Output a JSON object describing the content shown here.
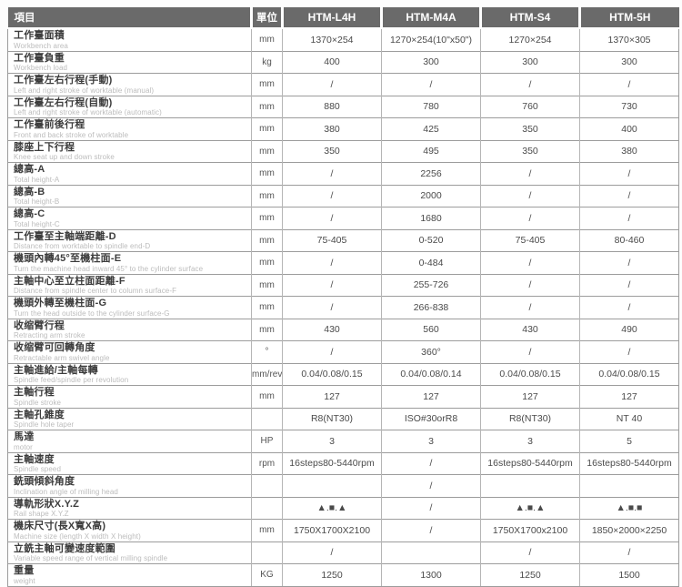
{
  "table": {
    "item_label": "項目",
    "unit_label": "單位",
    "models": [
      "HTM-L4H",
      "HTM-M4A",
      "HTM-S4",
      "HTM-5H"
    ],
    "rows": [
      {
        "zh": "工作臺面積",
        "en": "Workbench area",
        "unit": "mm",
        "values": [
          "1370×254",
          "1270×254(10\"x50\")",
          "1270×254",
          "1370×305"
        ]
      },
      {
        "zh": "工作臺負重",
        "en": "Workbench load",
        "unit": "kg",
        "values": [
          "400",
          "300",
          "300",
          "300"
        ]
      },
      {
        "zh": "工作臺左右行程(手動)",
        "en": "Left and right stroke of worktable (manual)",
        "unit": "mm",
        "values": [
          "/",
          "/",
          "/",
          "/"
        ]
      },
      {
        "zh": "工作臺左右行程(自動)",
        "en": "Left and right stroke of worktable (automatic)",
        "unit": "mm",
        "values": [
          "880",
          "780",
          "760",
          "730"
        ]
      },
      {
        "zh": "工作臺前後行程",
        "en": "Front and back stroke of worktable",
        "unit": "mm",
        "values": [
          "380",
          "425",
          "350",
          "400"
        ]
      },
      {
        "zh": "膝座上下行程",
        "en": "Knee seat up and down stroke",
        "unit": "mm",
        "values": [
          "350",
          "495",
          "350",
          "380"
        ]
      },
      {
        "zh": "總高-A",
        "en": "Total height-A",
        "unit": "mm",
        "values": [
          "/",
          "2256",
          "/",
          "/"
        ]
      },
      {
        "zh": "總高-B",
        "en": "Total height-B",
        "unit": "mm",
        "values": [
          "/",
          "2000",
          "/",
          "/"
        ]
      },
      {
        "zh": "總高-C",
        "en": "Total height-C",
        "unit": "mm",
        "values": [
          "/",
          "1680",
          "/",
          "/"
        ]
      },
      {
        "zh": "工作臺至主軸端距離-D",
        "en": "Distance from worktable to spindle end-D",
        "unit": "mm",
        "values": [
          "75-405",
          "0-520",
          "75-405",
          "80-460"
        ]
      },
      {
        "zh": "機頭內轉45°至機柱面-E",
        "en": "Turn the machine head inward 45° to the cylinder surface",
        "unit": "mm",
        "values": [
          "/",
          "0-484",
          "/",
          "/"
        ]
      },
      {
        "zh": "主軸中心至立柱面距離-F",
        "en": "Distance from spindle center to column surface-F",
        "unit": "mm",
        "values": [
          "/",
          "255-726",
          "/",
          "/"
        ]
      },
      {
        "zh": "機頭外轉至機柱面-G",
        "en": "Turn the head outside to the cylinder surface-G",
        "unit": "mm",
        "values": [
          "/",
          "266-838",
          "/",
          "/"
        ]
      },
      {
        "zh": "收缩臂行程",
        "en": "Retracting arm stroke",
        "unit": "mm",
        "values": [
          "430",
          "560",
          "430",
          "490"
        ]
      },
      {
        "zh": "收缩臂可回轉角度",
        "en": "Retractable arm swivel angle",
        "unit": "°",
        "values": [
          "/",
          "360°",
          "/",
          "/"
        ]
      },
      {
        "zh": "主軸進給/主軸每轉",
        "en": "Spindle feed/spindle per revolution",
        "unit": "mm/rev",
        "values": [
          "0.04/0.08/0.15",
          "0.04/0.08/0.14",
          "0.04/0.08/0.15",
          "0.04/0.08/0.15"
        ]
      },
      {
        "zh": "主軸行程",
        "en": "Spindle stroke",
        "unit": "mm",
        "values": [
          "127",
          "127",
          "127",
          "127"
        ]
      },
      {
        "zh": "主軸孔錐度",
        "en": "Spindle hole taper",
        "unit": "",
        "values": [
          "R8(NT30)",
          "ISO#30orR8",
          "R8(NT30)",
          "NT 40"
        ]
      },
      {
        "zh": "馬達",
        "en": "motor",
        "unit": "HP",
        "values": [
          "3",
          "3",
          "3",
          "5"
        ]
      },
      {
        "zh": "主軸速度",
        "en": "Spindle speed",
        "unit": "rpm",
        "values": [
          "16steps80-5440rpm",
          "/",
          "16steps80-5440rpm",
          "16steps80-5440rpm"
        ]
      },
      {
        "zh": "銑頭傾斜角度",
        "en": "Inclination angle of milling head",
        "unit": "",
        "values": [
          "",
          "/",
          "",
          ""
        ]
      },
      {
        "zh": "導軌形狀X.Y.Z",
        "en": "Rail shape X.Y.Z",
        "unit": "",
        "values": [
          "▲.■.▲",
          "/",
          "▲.■.▲",
          "▲.■.■"
        ]
      },
      {
        "zh": "機床尺寸(長X寬X高)",
        "en": "Machine size (length X width X height)",
        "unit": "mm",
        "values": [
          "1750X1700X2100",
          "/",
          "1750X1700x2100",
          "1850×2000×2250"
        ]
      },
      {
        "zh": "立銑主軸可變速度範圍",
        "en": "Variable speed range of vertical milling spindle",
        "unit": "",
        "values": [
          "/",
          "",
          "/",
          "/"
        ]
      },
      {
        "zh": "重量",
        "en": "weight",
        "unit": "KG",
        "values": [
          "1250",
          "1300",
          "1250",
          "1500"
        ]
      }
    ]
  },
  "colors": {
    "header_bg": "#6a6a6a",
    "header_text": "#ffffff",
    "label_text": "#3c3c3c",
    "sublabel_text": "#bcbcbc",
    "value_text": "#4a4a4a",
    "grid_line": "#9c9c9c"
  }
}
